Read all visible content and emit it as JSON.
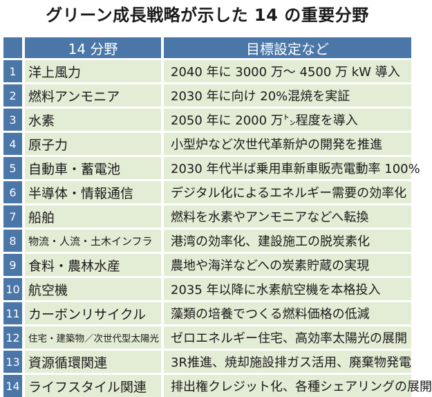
{
  "title": "グリーン成長戦略が示した 14 の重要分野",
  "header": {
    "field": "14 分野",
    "goal": "目標設定など"
  },
  "rows": [
    {
      "num": "1",
      "field": "洋上風力",
      "goal": "2040 年に 3000 万～ 4500 万 kW 導入"
    },
    {
      "num": "2",
      "field": "燃料アンモニア",
      "goal": "2030 年に向け 20%混焼を実証"
    },
    {
      "num": "3",
      "field": "水素",
      "goal": "2050 年に 2000 万㌧程度を導入"
    },
    {
      "num": "4",
      "field": "原子力",
      "goal": "小型炉など次世代革新炉の開発を推進"
    },
    {
      "num": "5",
      "field": "自動車・蓄電池",
      "goal": "2030 年代半ば乗用車新車販売電動率 100%"
    },
    {
      "num": "6",
      "field": "半導体・情報通信",
      "goal": "デジタル化によるエネルギー需要の効率化"
    },
    {
      "num": "7",
      "field": "船舶",
      "goal": "燃料を水素やアンモニアなどへ転換"
    },
    {
      "num": "8",
      "field": "物流・人流・土木インフラ",
      "goal": "港湾の効率化、建設施工の脱炭素化"
    },
    {
      "num": "9",
      "field": "食料・農林水産",
      "goal": "農地や海洋などへの炭素貯蔵の実現"
    },
    {
      "num": "10",
      "field": "航空機",
      "goal": "2035 年以降に水素航空機を本格投入"
    },
    {
      "num": "11",
      "field": "カーボンリサイクル",
      "goal": "藻類の培養でつくる燃料価格の低減"
    },
    {
      "num": "12",
      "field": "住宅・建築物／次世代型太陽光",
      "goal": "ゼロエネルギー住宅、高効率太陽光の展開"
    },
    {
      "num": "13",
      "field": "資源循環関連",
      "goal": "3R推進、焼却施設排ガス活用、廃棄物発電"
    },
    {
      "num": "14",
      "field": "ライフスタイル関連",
      "goal": "排出権クレジット化、各種シェアリングの展開"
    }
  ],
  "colors": {
    "header_bg": "#4a76a8",
    "cell_bg": "#e3ecd4"
  }
}
